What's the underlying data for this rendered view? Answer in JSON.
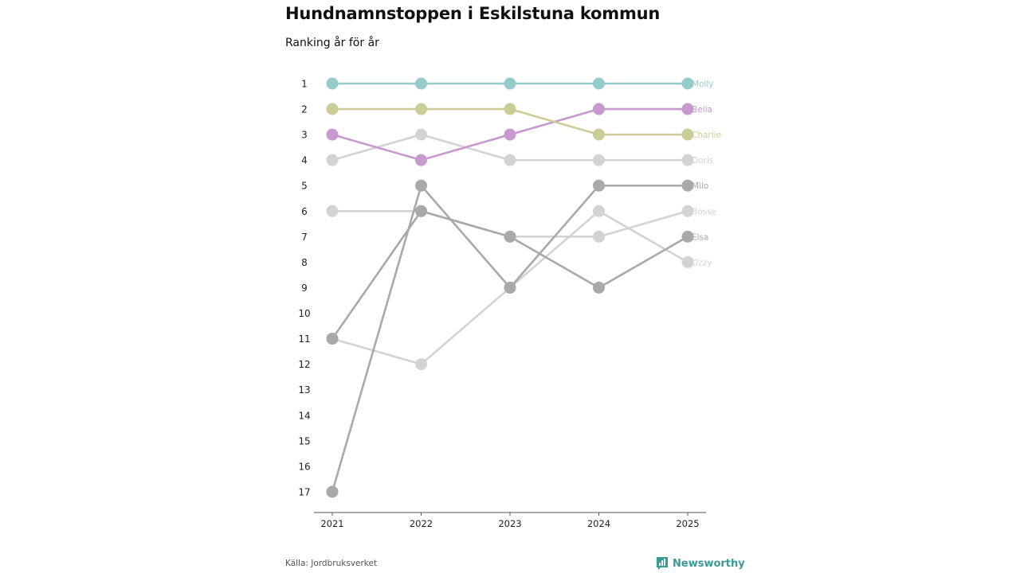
{
  "title": "Hundnamnstoppen i Eskilstuna kommun",
  "subtitle": "Ranking år för år",
  "source": "Källa: Jordbruksverket",
  "brand": "Newsworthy",
  "brand_icon": "bar-chart-icon",
  "chart_data": {
    "type": "line",
    "subtype": "bump",
    "title": "Hundnamnstoppen i Eskilstuna kommun",
    "subtitle": "Ranking år för år",
    "x": [
      "2021",
      "2022",
      "2023",
      "2024",
      "2025"
    ],
    "y_ticks": [
      "1",
      "2",
      "3",
      "4",
      "5",
      "6",
      "7",
      "8",
      "9",
      "10",
      "11",
      "12",
      "13",
      "14",
      "15",
      "16",
      "17"
    ],
    "ylim": [
      1,
      17
    ],
    "y_reversed": true,
    "grid": false,
    "series": [
      {
        "name": "Ozzy",
        "values": [
          11,
          12,
          9,
          6,
          8
        ],
        "color": "#d3d3d3"
      },
      {
        "name": "Bosse",
        "values": [
          6,
          6,
          7,
          7,
          6
        ],
        "color": "#d3d3d3"
      },
      {
        "name": "Doris",
        "values": [
          4,
          3,
          4,
          4,
          4
        ],
        "color": "#d3d3d3"
      },
      {
        "name": "Elsa",
        "values": [
          11,
          6,
          7,
          9,
          7
        ],
        "color": "#a9a9a9"
      },
      {
        "name": "Milo",
        "values": [
          17,
          5,
          9,
          5,
          5
        ],
        "color": "#a9a9a9"
      },
      {
        "name": "Bella",
        "values": [
          3,
          4,
          3,
          2,
          2
        ],
        "color": "#c799cf"
      },
      {
        "name": "Charlie",
        "values": [
          2,
          2,
          2,
          3,
          3
        ],
        "color": "#cccc99"
      },
      {
        "name": "Molly",
        "values": [
          1,
          1,
          1,
          1,
          1
        ],
        "color": "#95cbc9"
      }
    ]
  }
}
